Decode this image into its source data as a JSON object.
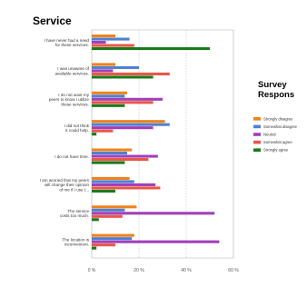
{
  "chart_data": {
    "type": "bar",
    "orientation": "horizontal",
    "title": "Service",
    "legend_title": "Survey Respons",
    "legend_placement": "right",
    "categories": [
      [
        "I have never had a need",
        "for these services."
      ],
      [
        "I was unaware of",
        "available services."
      ],
      [
        "I do not want my",
        "peers to know I utilize",
        "these services."
      ],
      [
        "I did not think",
        "it could help."
      ],
      [
        "I do not have time."
      ],
      [
        "I am worried that my peers",
        "will change their opinion",
        "of me if I use t..."
      ],
      [
        "The service",
        "costs too much."
      ],
      [
        "The location is",
        "inconvenient."
      ]
    ],
    "series": [
      {
        "name": "Strongly disagree",
        "color": "#F0821E",
        "values": [
          10,
          10,
          15,
          31,
          17,
          16,
          19,
          18
        ]
      },
      {
        "name": "Somewhat disagree",
        "color": "#4F81CF",
        "values": [
          16,
          20,
          14,
          33,
          15,
          18,
          14,
          17
        ]
      },
      {
        "name": "Neutral",
        "color": "#A23FB8",
        "values": [
          6,
          9,
          30,
          26,
          28,
          27,
          52,
          54
        ]
      },
      {
        "name": "Somewhat agree",
        "color": "#E8574A",
        "values": [
          18,
          33,
          26,
          9,
          24,
          29,
          13,
          10
        ]
      },
      {
        "name": "Strongly agree",
        "color": "#1A7A1A",
        "values": [
          50,
          26,
          14,
          2,
          14,
          10,
          3,
          2
        ]
      }
    ],
    "xlim": [
      0,
      60
    ],
    "xticks": [
      "0 %",
      "20 %",
      "40 %",
      "60 %"
    ],
    "grid": true
  }
}
